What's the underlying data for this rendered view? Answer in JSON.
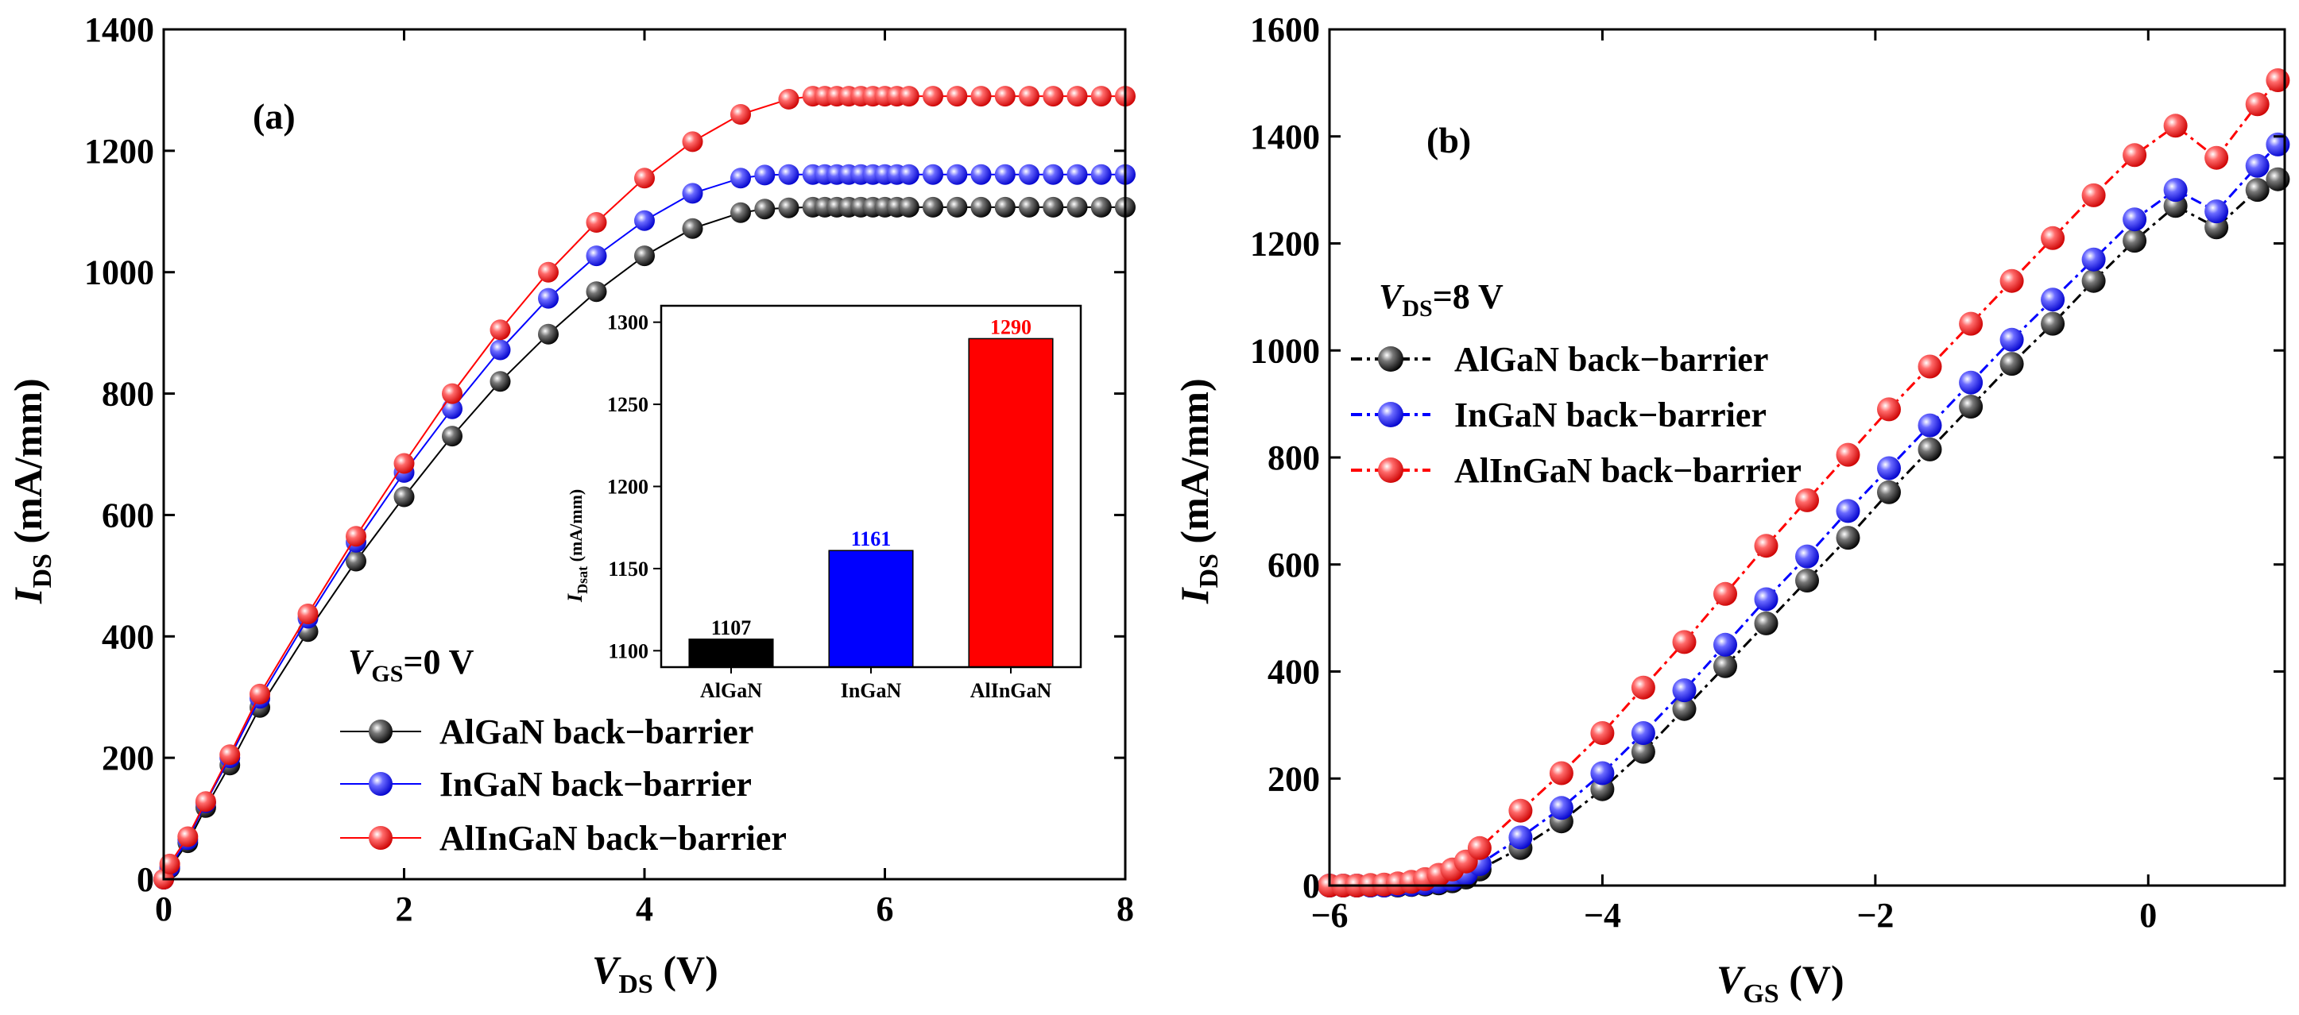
{
  "chart_data": [
    {
      "panel": "(a)",
      "type": "line",
      "xlabel": "V_DS (V)",
      "xlabel_main": "V",
      "xlabel_sub": "DS",
      "xlabel_rest": " (V)",
      "ylabel_main": "I",
      "ylabel_sub": "DS",
      "ylabel_rest": " (mA/mm)",
      "xlim": [
        0,
        8
      ],
      "ylim": [
        0,
        1400
      ],
      "xticks": [
        0,
        2,
        4,
        6,
        8
      ],
      "yticks": [
        0,
        200,
        400,
        600,
        800,
        1000,
        1200,
        1400
      ],
      "condition_main": "V",
      "condition_sub": "GS",
      "condition_rest": "=0 V",
      "legend_position": "lower-right",
      "series": [
        {
          "name": "AlGaN back−barrier",
          "color": "#000000",
          "x": [
            0,
            0.05,
            0.2,
            0.35,
            0.55,
            0.8,
            1.2,
            1.6,
            2.0,
            2.4,
            2.8,
            3.2,
            3.6,
            4.0,
            4.4,
            4.8,
            5.0,
            5.2,
            5.4,
            5.5,
            5.6,
            5.7,
            5.8,
            5.9,
            6.0,
            6.1,
            6.2,
            6.4,
            6.6,
            6.8,
            7.0,
            7.2,
            7.4,
            7.6,
            7.8,
            8.0
          ],
          "y": [
            0,
            18,
            60,
            118,
            188,
            283,
            408,
            524,
            630,
            730,
            820,
            898,
            968,
            1027,
            1072,
            1098,
            1104,
            1106,
            1107,
            1107,
            1107,
            1107,
            1107,
            1107,
            1107,
            1107,
            1107,
            1107,
            1107,
            1107,
            1107,
            1107,
            1107,
            1107,
            1107,
            1107
          ]
        },
        {
          "name": "InGaN back−barrier",
          "color": "#0000ff",
          "x": [
            0,
            0.05,
            0.2,
            0.35,
            0.55,
            0.8,
            1.2,
            1.6,
            2.0,
            2.4,
            2.8,
            3.2,
            3.6,
            4.0,
            4.4,
            4.8,
            5.0,
            5.2,
            5.4,
            5.5,
            5.6,
            5.7,
            5.8,
            5.9,
            6.0,
            6.1,
            6.2,
            6.4,
            6.6,
            6.8,
            7.0,
            7.2,
            7.4,
            7.6,
            7.8,
            8.0
          ],
          "y": [
            0,
            20,
            65,
            126,
            200,
            298,
            430,
            555,
            670,
            775,
            872,
            957,
            1027,
            1085,
            1130,
            1155,
            1160,
            1161,
            1161,
            1161,
            1161,
            1161,
            1161,
            1161,
            1161,
            1161,
            1161,
            1161,
            1161,
            1161,
            1161,
            1161,
            1161,
            1161,
            1161,
            1161
          ]
        },
        {
          "name": "AlInGaN back−barrier",
          "color": "#ff0000",
          "x": [
            0,
            0.05,
            0.2,
            0.35,
            0.55,
            0.8,
            1.2,
            1.6,
            2.0,
            2.4,
            2.8,
            3.2,
            3.6,
            4.0,
            4.4,
            4.8,
            5.2,
            5.4,
            5.5,
            5.6,
            5.7,
            5.8,
            5.9,
            6.0,
            6.1,
            6.2,
            6.4,
            6.6,
            6.8,
            7.0,
            7.2,
            7.4,
            7.6,
            7.8,
            8.0
          ],
          "y": [
            0,
            25,
            70,
            128,
            205,
            305,
            437,
            565,
            685,
            800,
            905,
            1000,
            1082,
            1155,
            1215,
            1260,
            1285,
            1290,
            1290,
            1290,
            1290,
            1290,
            1290,
            1290,
            1290,
            1290,
            1290,
            1290,
            1290,
            1290,
            1290,
            1290,
            1290,
            1290,
            1290
          ]
        }
      ],
      "inset": {
        "type": "bar",
        "ylabel_main": "I",
        "ylabel_sub": "Dsat",
        "ylabel_rest": " (mA/mm)",
        "ylim": [
          1090,
          1310
        ],
        "yticks": [
          1100,
          1150,
          1200,
          1250,
          1300
        ],
        "categories": [
          "AlGaN",
          "InGaN",
          "AlInGaN"
        ],
        "values": [
          1107,
          1161,
          1290
        ],
        "value_labels": [
          "1107",
          "1161",
          "1290"
        ],
        "colors": [
          "#000000",
          "#0000ff",
          "#ff0000"
        ]
      }
    },
    {
      "panel": "(b)",
      "type": "line",
      "xlabel": "V_GS (V)",
      "xlabel_main": "V",
      "xlabel_sub": "GS",
      "xlabel_rest": " (V)",
      "ylabel_main": "I",
      "ylabel_sub": "DS",
      "ylabel_rest": " (mA/mm)",
      "xlim": [
        -6,
        1
      ],
      "ylim": [
        0,
        1600
      ],
      "xticks": [
        -6,
        -4,
        -2,
        0
      ],
      "xtick_labels": [
        "−6",
        "−4",
        "−2",
        "0"
      ],
      "yticks": [
        0,
        200,
        400,
        600,
        800,
        1000,
        1200,
        1400,
        1600
      ],
      "condition_main": "V",
      "condition_sub": "DS",
      "condition_rest": "=8 V",
      "legend_position": "upper-left",
      "series": [
        {
          "name": "AlGaN back−barrier",
          "color": "#000000",
          "x": [
            -6.0,
            -5.9,
            -5.8,
            -5.7,
            -5.6,
            -5.5,
            -5.4,
            -5.3,
            -5.2,
            -5.1,
            -5.0,
            -4.9,
            -4.6,
            -4.3,
            -4.0,
            -3.7,
            -3.4,
            -3.1,
            -2.8,
            -2.5,
            -2.2,
            -1.9,
            -1.6,
            -1.3,
            -1.0,
            -0.7,
            -0.4,
            -0.1,
            0.2,
            0.5,
            0.8,
            0.95
          ],
          "y": [
            0,
            0,
            0,
            0,
            0,
            0,
            1,
            2,
            4,
            8,
            15,
            30,
            70,
            120,
            180,
            250,
            330,
            410,
            490,
            570,
            650,
            735,
            815,
            895,
            975,
            1050,
            1130,
            1205,
            1270,
            1230,
            1300,
            1320
          ]
        },
        {
          "name": "InGaN back−barrier",
          "color": "#0000ff",
          "x": [
            -6.0,
            -5.9,
            -5.8,
            -5.7,
            -5.6,
            -5.5,
            -5.4,
            -5.3,
            -5.2,
            -5.1,
            -5.0,
            -4.9,
            -4.6,
            -4.3,
            -4.0,
            -3.7,
            -3.4,
            -3.1,
            -2.8,
            -2.5,
            -2.2,
            -1.9,
            -1.6,
            -1.3,
            -1.0,
            -0.7,
            -0.4,
            -0.1,
            0.2,
            0.5,
            0.8,
            0.95
          ],
          "y": [
            0,
            0,
            0,
            0,
            0,
            1,
            2,
            4,
            7,
            12,
            22,
            40,
            90,
            145,
            210,
            285,
            365,
            450,
            535,
            615,
            700,
            780,
            860,
            940,
            1020,
            1095,
            1170,
            1245,
            1300,
            1260,
            1345,
            1385
          ]
        },
        {
          "name": "AlInGaN back−barrier",
          "color": "#ff0000",
          "x": [
            -6.0,
            -5.9,
            -5.8,
            -5.7,
            -5.6,
            -5.5,
            -5.4,
            -5.3,
            -5.2,
            -5.1,
            -5.0,
            -4.9,
            -4.6,
            -4.3,
            -4.0,
            -3.7,
            -3.4,
            -3.1,
            -2.8,
            -2.5,
            -2.2,
            -1.9,
            -1.6,
            -1.3,
            -1.0,
            -0.7,
            -0.4,
            -0.1,
            0.2,
            0.5,
            0.8,
            0.95
          ],
          "y": [
            0,
            0,
            0,
            1,
            2,
            4,
            7,
            12,
            20,
            30,
            45,
            70,
            140,
            210,
            285,
            370,
            455,
            545,
            635,
            720,
            805,
            890,
            970,
            1050,
            1130,
            1210,
            1290,
            1365,
            1420,
            1360,
            1460,
            1505
          ]
        }
      ]
    }
  ]
}
